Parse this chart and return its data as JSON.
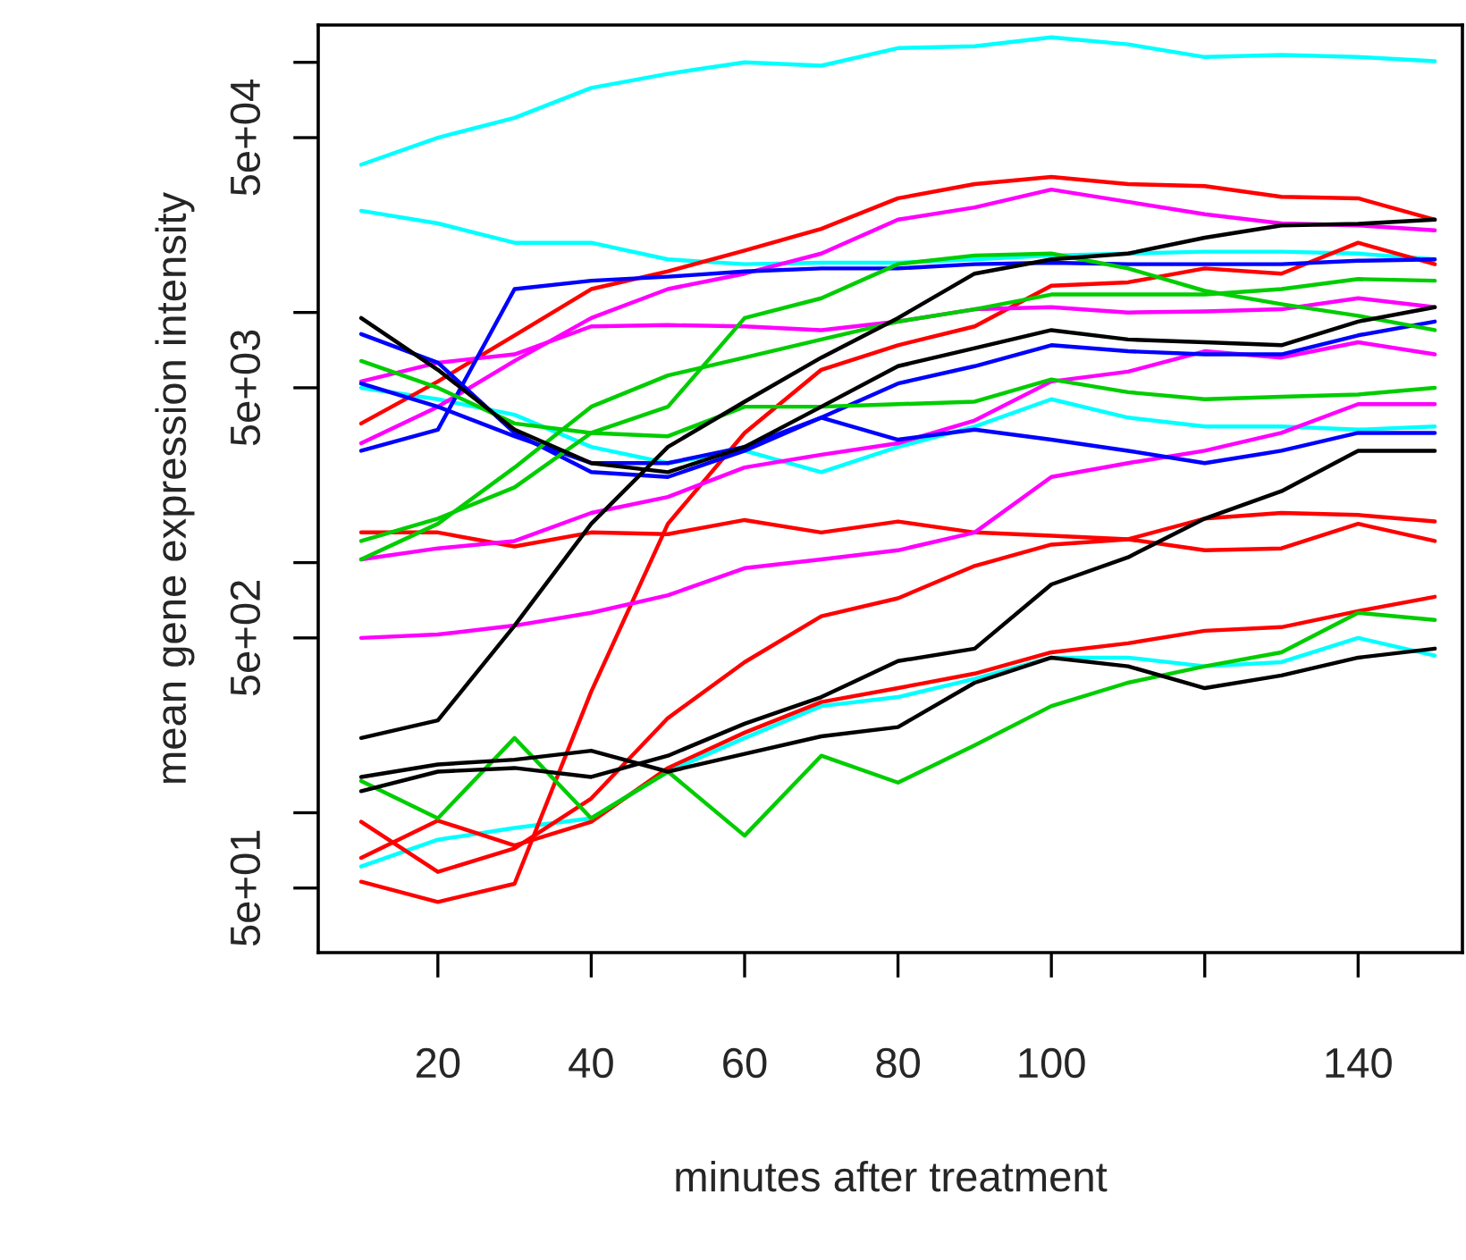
{
  "chart_data": {
    "type": "line",
    "xlabel": "minutes after treatment",
    "ylabel": "mean gene expression intensity",
    "log": "y",
    "grid": false,
    "marker": "none",
    "line_style": "solid",
    "x": [
      10,
      20,
      30,
      40,
      50,
      60,
      70,
      80,
      90,
      100,
      110,
      120,
      130,
      140,
      150
    ],
    "xlim": [
      4.4,
      153.6
    ],
    "xticks": [
      20,
      40,
      60,
      80,
      100,
      {
        "value": 120,
        "label": null
      },
      140
    ],
    "ylim": [
      27.6,
      141000
    ],
    "yticks": [
      {
        "value": 50,
        "label": "5e+01"
      },
      {
        "value": 100,
        "label": null
      },
      {
        "value": 500,
        "label": "5e+02"
      },
      {
        "value": 1000,
        "label": null
      },
      {
        "value": 5000,
        "label": "5e+03"
      },
      {
        "value": 10000,
        "label": null
      },
      {
        "value": 50000,
        "label": "5e+04"
      },
      {
        "value": 100000,
        "label": null
      }
    ],
    "series": [
      {
        "color": "#00ffff",
        "values": [
          39000,
          50000,
          60000,
          79000,
          90000,
          100000,
          97000,
          114000,
          116000,
          126000,
          118000,
          105000,
          107000,
          105000,
          101000
        ]
      },
      {
        "color": "#00ffff",
        "values": [
          25500,
          22700,
          19000,
          19000,
          16300,
          15600,
          15800,
          15800,
          16300,
          16900,
          17200,
          17500,
          17500,
          17200,
          16300
        ]
      },
      {
        "color": "#00ffff",
        "values": [
          5000,
          4500,
          3900,
          2900,
          2500,
          2800,
          2300,
          2900,
          3500,
          4500,
          3800,
          3500,
          3500,
          3400,
          3500
        ]
      },
      {
        "color": "#00ffff",
        "values": [
          61,
          78,
          87,
          95,
          146,
          199,
          267,
          290,
          343,
          417,
          417,
          385,
          400,
          500,
          425
        ]
      },
      {
        "color": "#ff0000",
        "values": [
          3600,
          5300,
          8100,
          12400,
          14600,
          17700,
          21600,
          28600,
          32600,
          34800,
          32600,
          32000,
          29000,
          28600,
          23500
        ]
      },
      {
        "color": "#ff0000",
        "values": [
          53,
          44,
          52,
          305,
          1430,
          3300,
          5900,
          7400,
          8800,
          12800,
          13200,
          15000,
          14300,
          19000,
          15600
        ]
      },
      {
        "color": "#ff0000",
        "values": [
          1320,
          1320,
          1160,
          1320,
          1300,
          1480,
          1320,
          1460,
          1320,
          1280,
          1240,
          1120,
          1140,
          1430,
          1220
        ]
      },
      {
        "color": "#ff0000",
        "values": [
          92,
          58,
          72,
          114,
          239,
          400,
          610,
          720,
          970,
          1180,
          1240,
          1500,
          1580,
          1550,
          1460
        ]
      },
      {
        "color": "#ff0000",
        "values": [
          66,
          93,
          74,
          92,
          151,
          209,
          277,
          315,
          360,
          438,
          476,
          534,
          552,
          640,
          730
        ]
      },
      {
        "color": "#ff00ff",
        "values": [
          3000,
          4200,
          6400,
          9500,
          12400,
          14300,
          17200,
          23500,
          26300,
          31000,
          27700,
          24700,
          22700,
          22300,
          21300
        ]
      },
      {
        "color": "#ff00ff",
        "values": [
          5300,
          6300,
          6800,
          8800,
          8900,
          8800,
          8500,
          9200,
          10300,
          10500,
          10000,
          10100,
          10300,
          11400,
          10500
        ]
      },
      {
        "color": "#ff00ff",
        "values": [
          1030,
          1140,
          1220,
          1580,
          1830,
          2400,
          2700,
          3000,
          3700,
          5300,
          5800,
          7000,
          6600,
          7600,
          6800
        ]
      },
      {
        "color": "#ff00ff",
        "values": [
          500,
          516,
          560,
          630,
          740,
          950,
          1030,
          1120,
          1320,
          2200,
          2500,
          2800,
          3300,
          4300,
          4300
        ]
      },
      {
        "color": "#0000ff",
        "values": [
          2800,
          3400,
          12400,
          13400,
          13900,
          14600,
          15000,
          15000,
          15600,
          15800,
          15600,
          15600,
          15600,
          16100,
          16300
        ]
      },
      {
        "color": "#0000ff",
        "values": [
          8200,
          6300,
          3300,
          2300,
          2200,
          2800,
          3800,
          5200,
          6100,
          7400,
          7000,
          6800,
          6800,
          8100,
          9200
        ]
      },
      {
        "color": "#0000ff",
        "values": [
          5200,
          4200,
          3200,
          2500,
          2500,
          2900,
          3800,
          3100,
          3400,
          3100,
          2800,
          2500,
          2800,
          3300,
          3300
        ]
      },
      {
        "color": "#00cd00",
        "values": [
          1220,
          1500,
          2000,
          3300,
          4200,
          9500,
          11400,
          15600,
          16900,
          17200,
          15000,
          12200,
          10800,
          9700,
          8500
        ]
      },
      {
        "color": "#00cd00",
        "values": [
          1030,
          1430,
          2400,
          4200,
          5600,
          6600,
          7800,
          9200,
          10300,
          11800,
          11800,
          11800,
          12400,
          13600,
          13400
        ]
      },
      {
        "color": "#00cd00",
        "values": [
          6400,
          5000,
          3600,
          3300,
          3200,
          4200,
          4200,
          4300,
          4400,
          5400,
          4800,
          4500,
          4600,
          4700,
          5000
        ]
      },
      {
        "color": "#00cd00",
        "values": [
          134,
          95,
          199,
          95,
          146,
          81,
          169,
          132,
          186,
          267,
          331,
          385,
          438,
          630,
          590
        ]
      },
      {
        "color": "#000000",
        "values": [
          9500,
          5900,
          3400,
          2500,
          2300,
          2900,
          4200,
          6100,
          7200,
          8500,
          7800,
          7600,
          7400,
          9200,
          10500
        ]
      },
      {
        "color": "#000000",
        "values": [
          199,
          234,
          560,
          1430,
          2900,
          4400,
          6600,
          9500,
          14300,
          16300,
          17200,
          19900,
          22300,
          22600,
          23500
        ]
      },
      {
        "color": "#000000",
        "values": [
          139,
          156,
          163,
          177,
          146,
          172,
          202,
          220,
          331,
          417,
          385,
          315,
          354,
          417,
          453
        ]
      },
      {
        "color": "#000000",
        "values": [
          122,
          146,
          151,
          139,
          169,
          227,
          290,
          404,
          453,
          818,
          1050,
          1500,
          1930,
          2800,
          2800
        ]
      }
    ]
  }
}
